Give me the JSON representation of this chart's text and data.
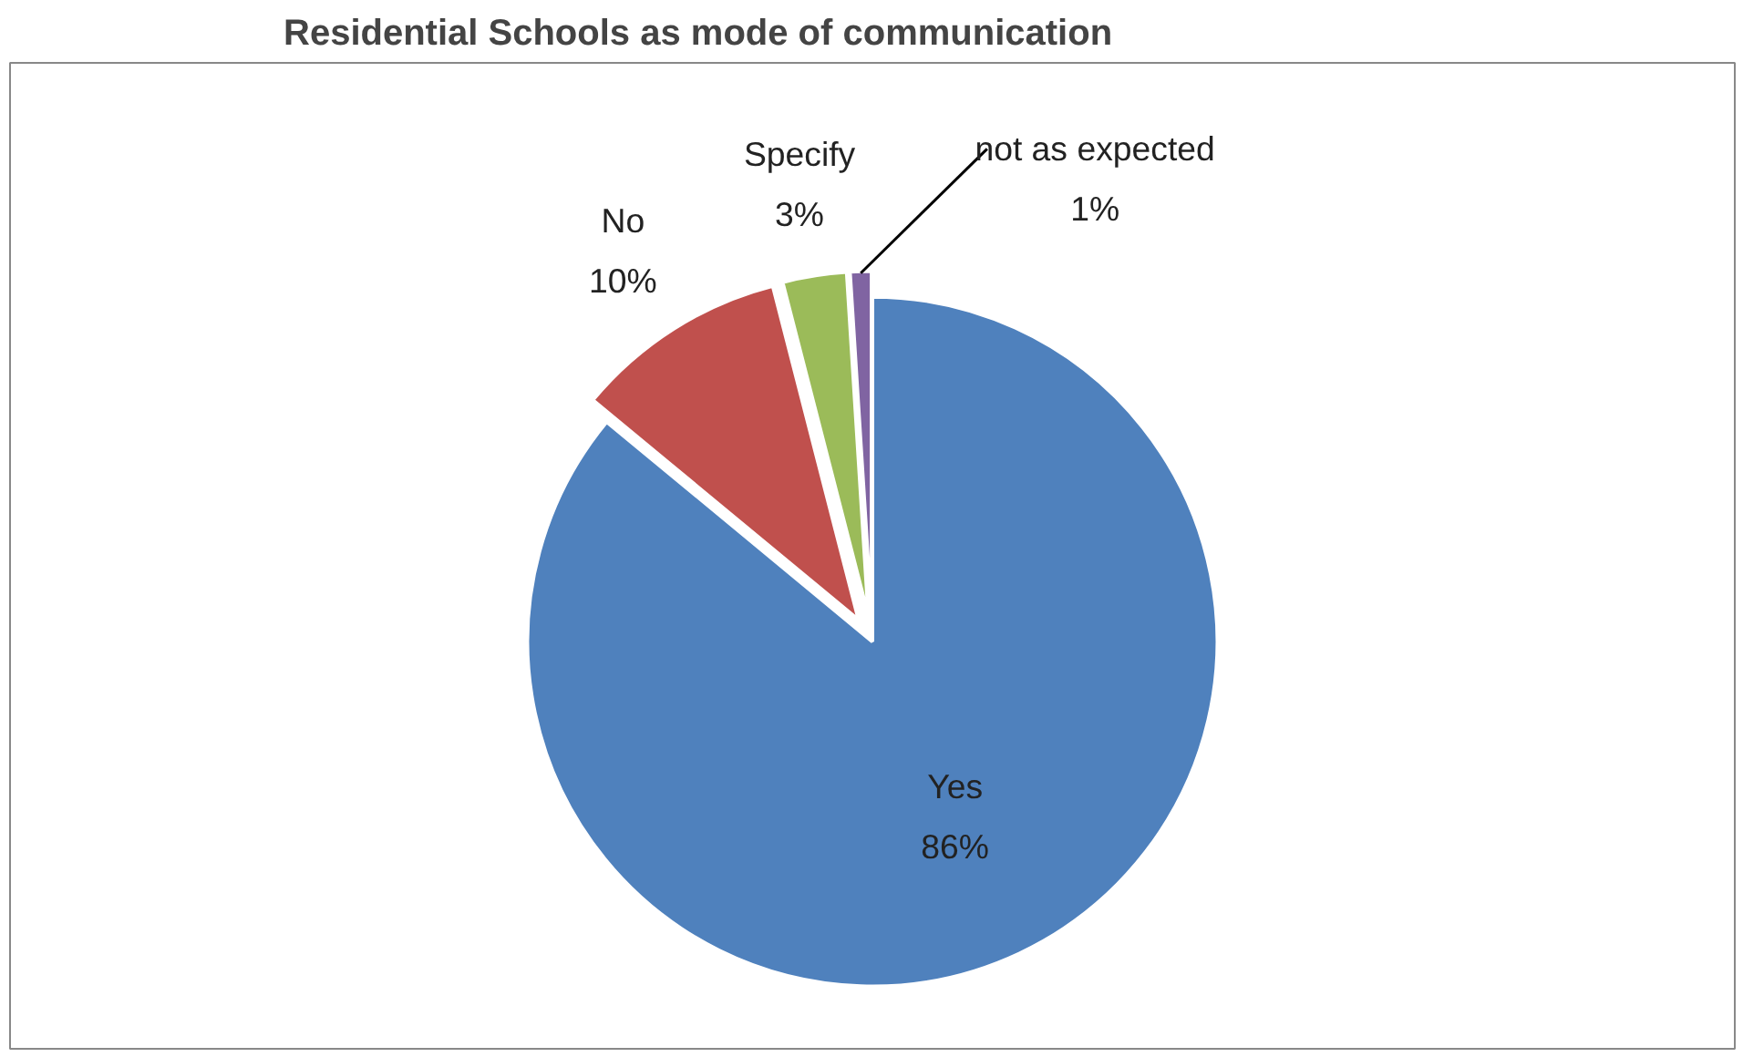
{
  "chart_data": {
    "type": "pie",
    "title": "Residential Schools as mode of communication",
    "categories": [
      "Yes",
      "No",
      "Specify",
      "not as expected"
    ],
    "values": [
      86,
      10,
      3,
      1
    ],
    "value_labels": [
      "86%",
      "10%",
      "3%",
      "1%"
    ],
    "colors": [
      "#4f81bd",
      "#c0504d",
      "#9bbb59",
      "#8064a2"
    ]
  }
}
